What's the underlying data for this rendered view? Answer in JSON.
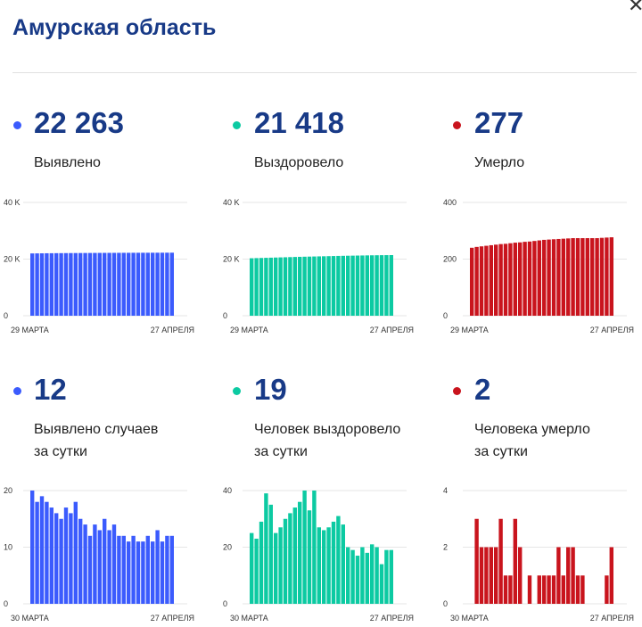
{
  "header": {
    "title": "Амурская область",
    "close_icon": "close-icon"
  },
  "stats": [
    {
      "value": "22 263",
      "label": "Выявлено",
      "color": "#3b5bfd"
    },
    {
      "value": "21 418",
      "label": "Выздоровело",
      "color": "#0ccaa2"
    },
    {
      "value": "277",
      "label": "Умерло",
      "color": "#c9141d"
    },
    {
      "value": "12",
      "label_line1": "Выявлено случаев",
      "label_line2": "за сутки",
      "color": "#3b5bfd"
    },
    {
      "value": "19",
      "label_line1": "Человек выздоровело",
      "label_line2": "за сутки",
      "color": "#0ccaa2"
    },
    {
      "value": "2",
      "label_line1": "Человека умерло",
      "label_line2": "за сутки",
      "color": "#c9141d"
    }
  ],
  "chart_data": [
    {
      "type": "bar",
      "series_name": "Выявлено",
      "color": "#3b5bfd",
      "y_ticks": [
        "40 K",
        "20 K",
        "0"
      ],
      "ylim": [
        0,
        40000
      ],
      "x_start_label": "29 МАРТА",
      "x_end_label": "27 АПРЕЛЯ",
      "values": [
        22000,
        22020,
        22040,
        22060,
        22075,
        22090,
        22100,
        22115,
        22125,
        22135,
        22145,
        22155,
        22165,
        22175,
        22185,
        22195,
        22200,
        22205,
        22212,
        22220,
        22225,
        22230,
        22236,
        22240,
        22245,
        22250,
        22254,
        22258,
        22261,
        22263
      ]
    },
    {
      "type": "bar",
      "series_name": "Выздоровело",
      "color": "#0ccaa2",
      "y_ticks": [
        "40 K",
        "20 K",
        "0"
      ],
      "ylim": [
        0,
        40000
      ],
      "x_start_label": "29 МАРТА",
      "x_end_label": "27 АПРЕЛЯ",
      "values": [
        20300,
        20350,
        20400,
        20450,
        20500,
        20550,
        20600,
        20650,
        20700,
        20750,
        20800,
        20840,
        20880,
        20920,
        20960,
        21000,
        21040,
        21080,
        21120,
        21160,
        21190,
        21220,
        21250,
        21280,
        21310,
        21340,
        21360,
        21385,
        21400,
        21418
      ]
    },
    {
      "type": "bar",
      "series_name": "Умерло",
      "color": "#c9141d",
      "y_ticks": [
        "400",
        "200",
        "0"
      ],
      "ylim": [
        0,
        400
      ],
      "x_start_label": "29 МАРТА",
      "x_end_label": "27 АПРЕЛЯ",
      "values": [
        240,
        243,
        245,
        247,
        249,
        251,
        253,
        254,
        256,
        258,
        259,
        261,
        262,
        264,
        266,
        268,
        269,
        270,
        271,
        272,
        273,
        274,
        274,
        274,
        274,
        274,
        274,
        275,
        276,
        277
      ]
    },
    {
      "type": "bar",
      "series_name": "Выявлено случаев за сутки",
      "color": "#3b5bfd",
      "y_ticks": [
        "20",
        "10",
        "0"
      ],
      "ylim": [
        0,
        20
      ],
      "x_start_label": "30 МАРТА",
      "x_end_label": "27 АПРЕЛЯ",
      "values": [
        20,
        18,
        19,
        18,
        17,
        16,
        15,
        17,
        16,
        18,
        15,
        14,
        12,
        14,
        13,
        15,
        13,
        14,
        12,
        12,
        11,
        12,
        11,
        11,
        12,
        11,
        13,
        11,
        12,
        12
      ]
    },
    {
      "type": "bar",
      "series_name": "Человек выздоровело за сутки",
      "color": "#0ccaa2",
      "y_ticks": [
        "40",
        "20",
        "0"
      ],
      "ylim": [
        0,
        40
      ],
      "x_start_label": "30 МАРТА",
      "x_end_label": "27 АПРЕЛЯ",
      "values": [
        25,
        23,
        29,
        39,
        35,
        25,
        27,
        30,
        32,
        34,
        36,
        40,
        33,
        40,
        27,
        26,
        27,
        29,
        31,
        28,
        20,
        19,
        17,
        20,
        18,
        21,
        20,
        14,
        19,
        19
      ]
    },
    {
      "type": "bar",
      "series_name": "Человека умерло за сутки",
      "color": "#c9141d",
      "y_ticks": [
        "4",
        "2",
        "0"
      ],
      "ylim": [
        0,
        4
      ],
      "x_start_label": "30 МАРТА",
      "x_end_label": "27 АПРЕЛЯ",
      "values": [
        0,
        3,
        2,
        2,
        2,
        2,
        3,
        1,
        1,
        3,
        2,
        0,
        1,
        0,
        1,
        1,
        1,
        1,
        2,
        1,
        2,
        2,
        1,
        1,
        0,
        0,
        0,
        0,
        1,
        2
      ]
    }
  ]
}
